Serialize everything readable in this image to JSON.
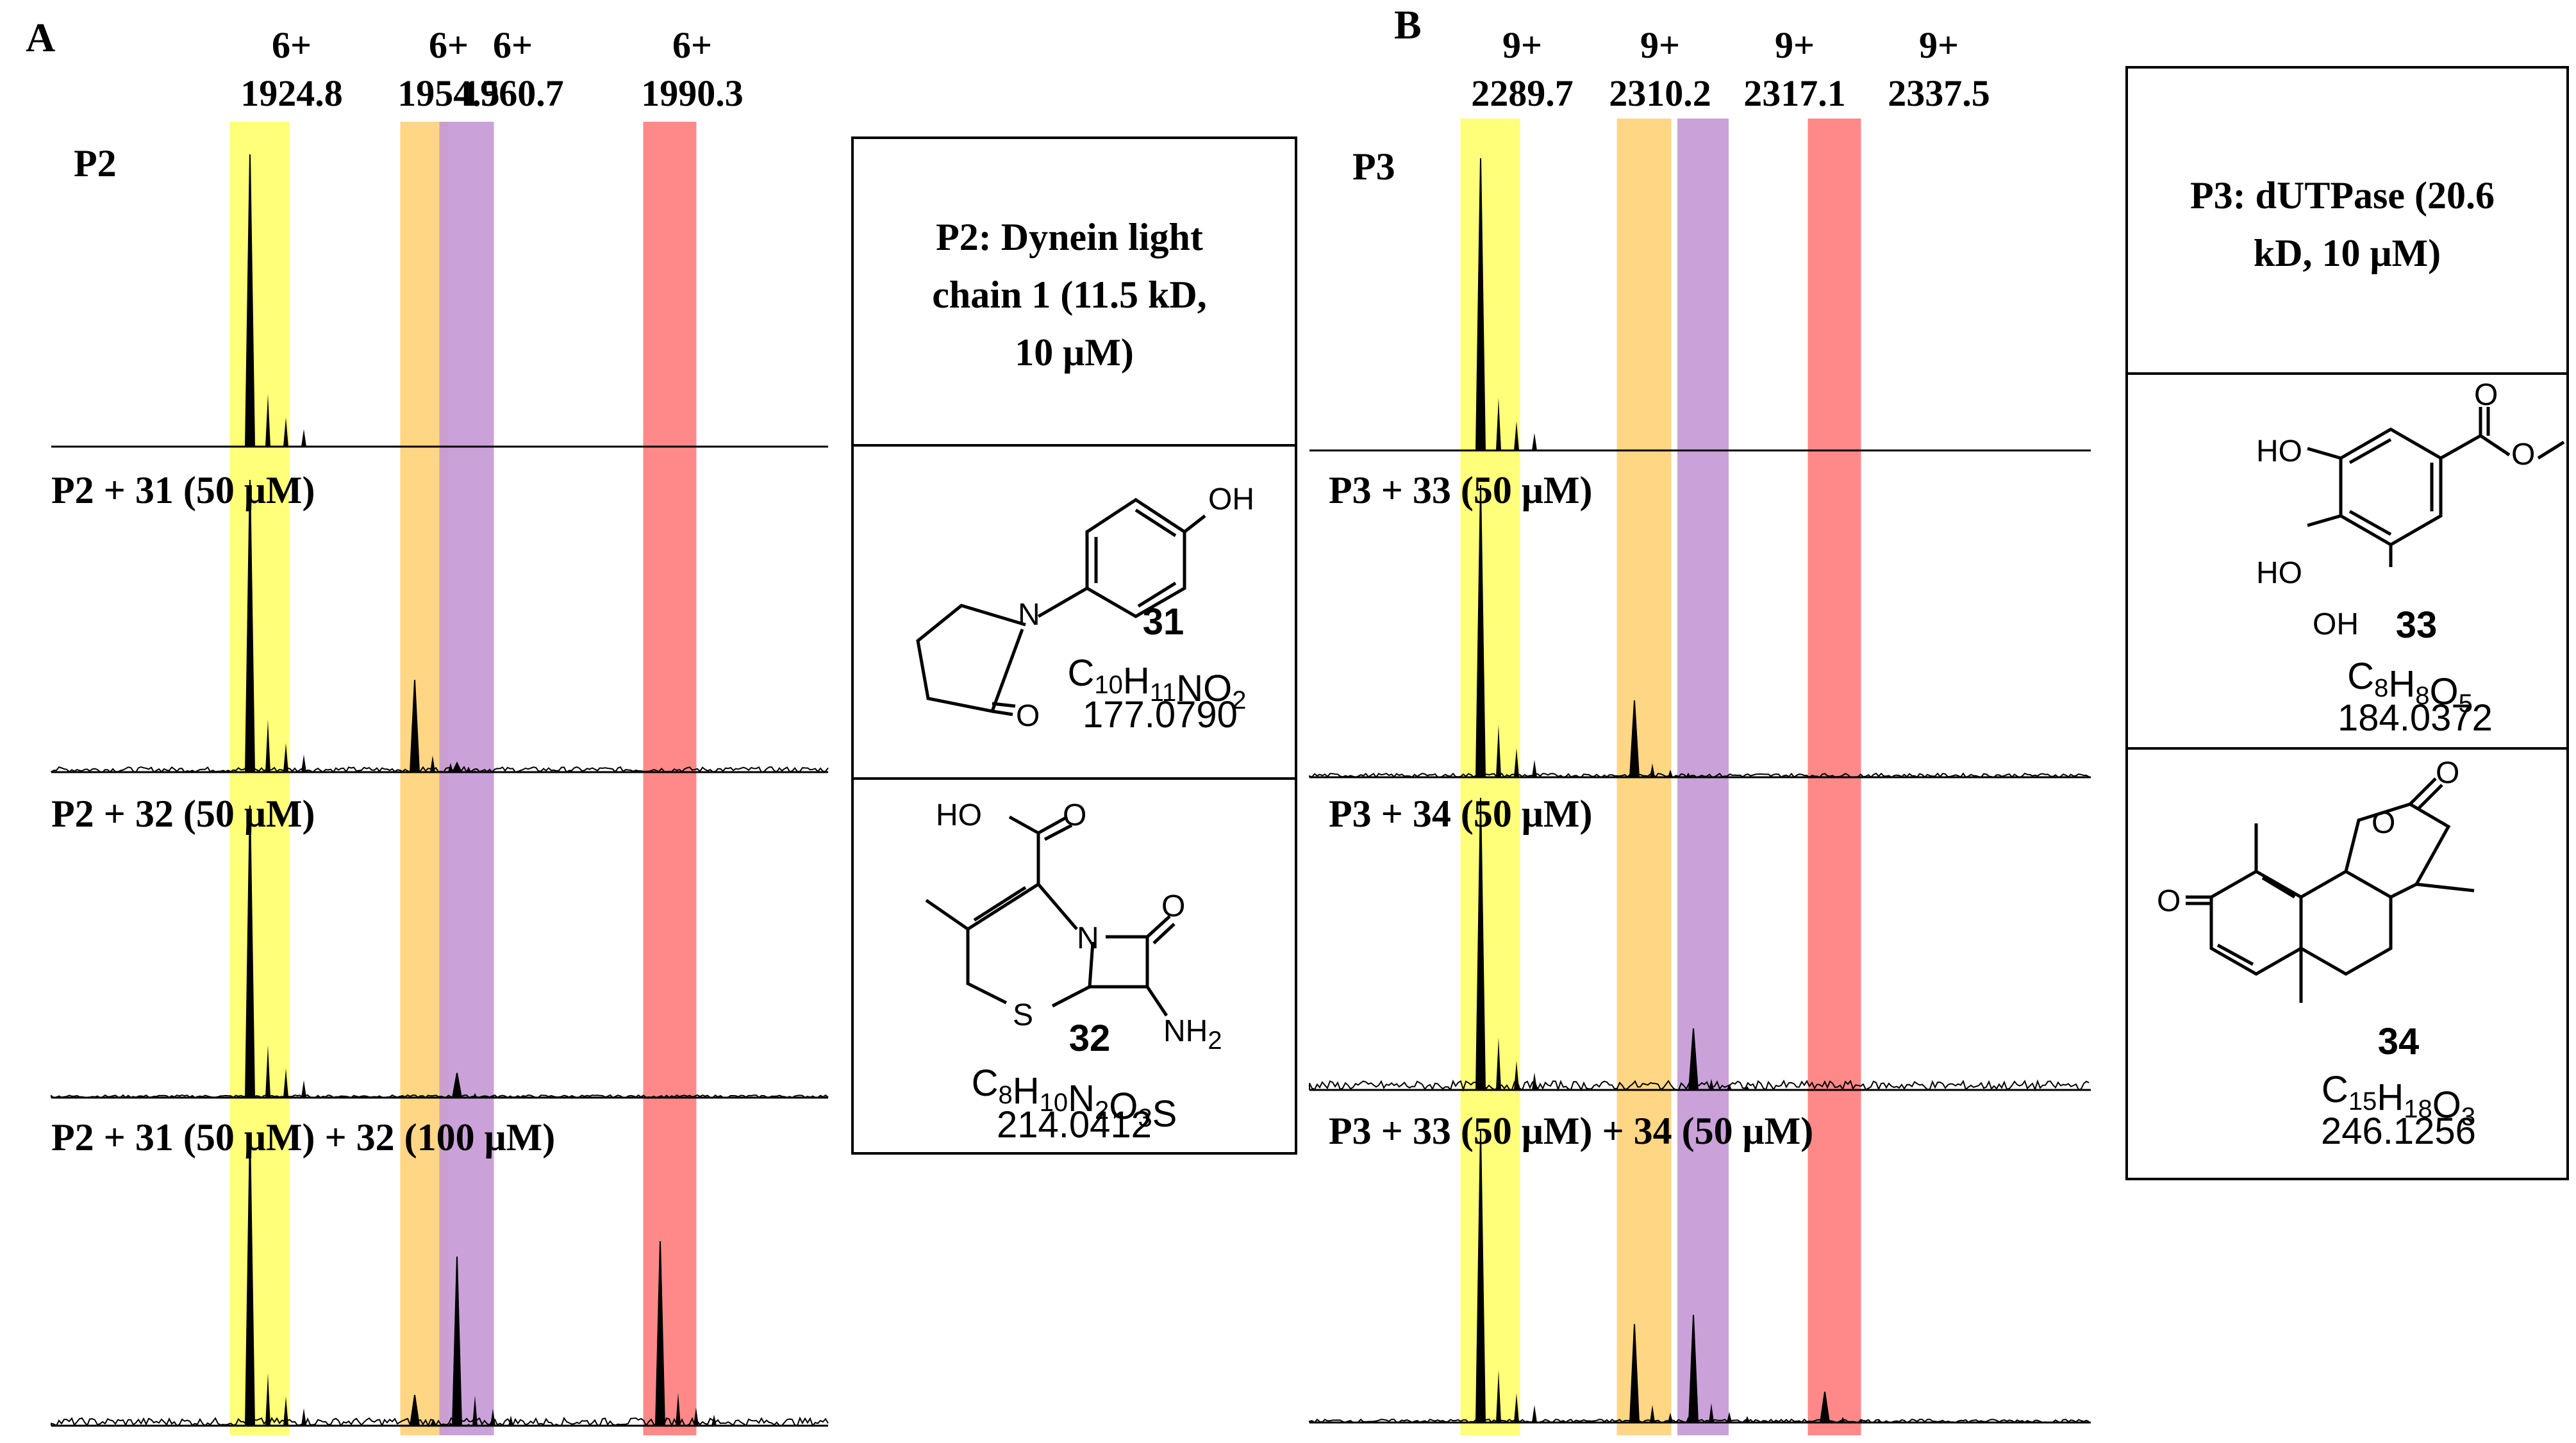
{
  "colors": {
    "yellow": "#ffff6e",
    "orange": "#ffd27a",
    "purple": "#c69ad6",
    "red": "#ff7f7f",
    "trace": "#000000"
  },
  "panel_a": {
    "letter": "A",
    "peaks": [
      {
        "charge": "6+",
        "mz": "1924.8",
        "color": "yellow"
      },
      {
        "charge": "6+",
        "mz": "1954.5",
        "color": "orange"
      },
      {
        "charge": "6+",
        "mz": "1960.7",
        "color": "purple"
      },
      {
        "charge": "6+",
        "mz": "1990.3",
        "color": "red"
      }
    ],
    "spectra": [
      {
        "label": "P2",
        "intensities": {
          "yellow": 0.95,
          "orange": 0.0,
          "purple": 0.0,
          "red": 0.0
        }
      },
      {
        "label": "P2 + 31 (50 μM)",
        "intensities": {
          "yellow": 0.95,
          "orange": 0.3,
          "purple": 0.03,
          "red": 0.0
        }
      },
      {
        "label": "P2 + 32 (50 μM)",
        "intensities": {
          "yellow": 0.95,
          "orange": 0.0,
          "purple": 0.08,
          "red": 0.0
        }
      },
      {
        "label": "P2 + 31 (50 μM) + 32 (100 μM)",
        "intensities": {
          "yellow": 0.95,
          "orange": 0.1,
          "purple": 0.55,
          "red": 0.6
        }
      }
    ],
    "table": {
      "header": "P2: Dynein light chain 1 (11.5 kD, 10 μM)",
      "compounds": [
        {
          "number": "31",
          "formula": "C10H11NO2",
          "mass": "177.0790"
        },
        {
          "number": "32",
          "formula": "C8H10N2O3S",
          "mass": "214.0412"
        }
      ]
    }
  },
  "panel_b": {
    "letter": "B",
    "peaks": [
      {
        "charge": "9+",
        "mz": "2289.7",
        "color": "yellow"
      },
      {
        "charge": "9+",
        "mz": "2310.2",
        "color": "orange"
      },
      {
        "charge": "9+",
        "mz": "2317.1",
        "color": "purple"
      },
      {
        "charge": "9+",
        "mz": "2337.5",
        "color": "red"
      }
    ],
    "spectra": [
      {
        "label": "P3",
        "intensities": {
          "yellow": 0.95,
          "orange": 0.0,
          "purple": 0.0,
          "red": 0.0
        }
      },
      {
        "label": "P3 + 33 (50 μM)",
        "intensities": {
          "yellow": 0.95,
          "orange": 0.25,
          "purple": 0.0,
          "red": 0.0
        }
      },
      {
        "label": "P3 + 34 (50 μM)",
        "intensities": {
          "yellow": 0.95,
          "orange": 0.0,
          "purple": 0.2,
          "red": 0.0
        }
      },
      {
        "label": "P3 + 33 (50 μM) + 34 (50 μM)",
        "intensities": {
          "yellow": 0.95,
          "orange": 0.32,
          "purple": 0.35,
          "red": 0.1
        }
      }
    ],
    "table": {
      "header": "P3: dUTPase (20.6 kD, 10 μM)",
      "compounds": [
        {
          "number": "33",
          "formula": "C8H8O5",
          "mass": "184.0372"
        },
        {
          "number": "34",
          "formula": "C15H18O3",
          "mass": "246.1256"
        }
      ]
    }
  },
  "structure_labels": {
    "oh": "OH",
    "ho": "HO",
    "o": "O",
    "n": "N",
    "s": "S",
    "nh2": "NH2"
  }
}
